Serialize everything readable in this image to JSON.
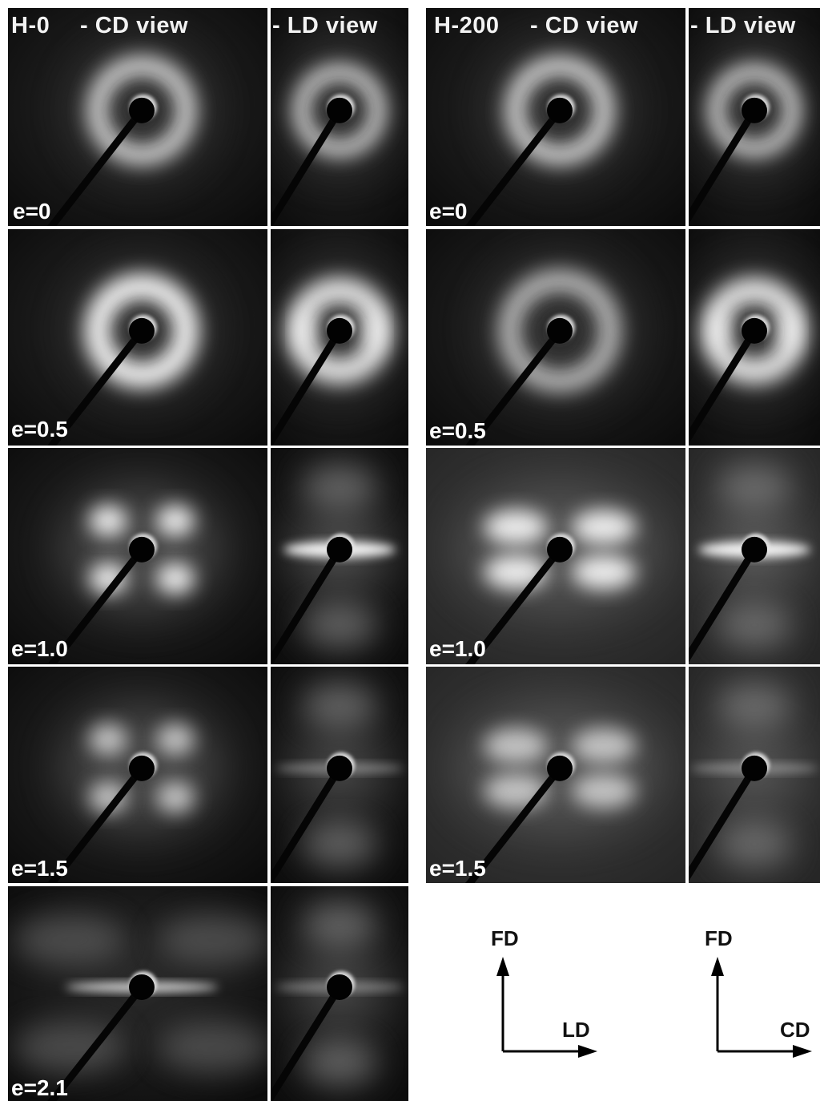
{
  "groups": [
    {
      "sample": "H-0",
      "views": [
        "- CD view",
        "- LD view"
      ],
      "strains": [
        "e=0",
        "e=0.5",
        "e=1.0",
        "e=1.5",
        "e=2.1"
      ]
    },
    {
      "sample": "H-200",
      "views": [
        "- CD view",
        "- LD view"
      ],
      "strains": [
        "e=0",
        "e=0.5",
        "e=1.0",
        "e=1.5"
      ]
    }
  ],
  "axes": [
    {
      "vertical": "FD",
      "horizontal": "LD"
    },
    {
      "vertical": "FD",
      "horizontal": "CD"
    }
  ]
}
